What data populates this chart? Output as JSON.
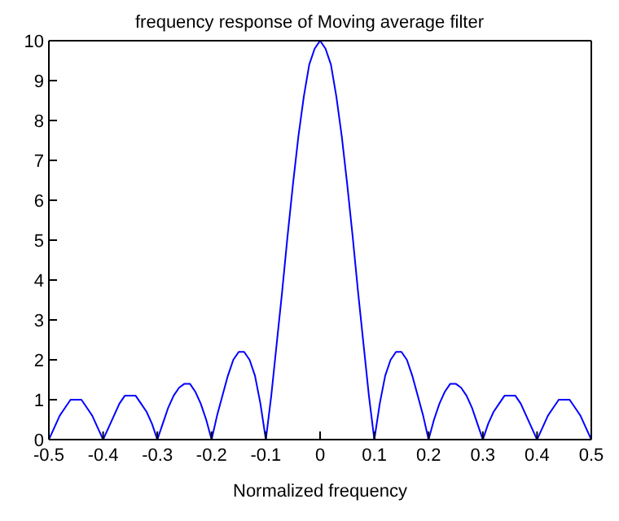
{
  "chart_data": {
    "type": "line",
    "title": "frequency response of Moving average filter",
    "xlabel": "Normalized frequency",
    "x": [
      -0.5,
      -0.49,
      -0.48,
      -0.47,
      -0.46,
      -0.45,
      -0.44,
      -0.43,
      -0.42,
      -0.41,
      -0.4,
      -0.39,
      -0.38,
      -0.37,
      -0.36,
      -0.35,
      -0.34,
      -0.33,
      -0.32,
      -0.31,
      -0.3,
      -0.29,
      -0.28,
      -0.27,
      -0.26,
      -0.25,
      -0.24,
      -0.23,
      -0.22,
      -0.21,
      -0.2,
      -0.19,
      -0.18,
      -0.17,
      -0.16,
      -0.15,
      -0.14,
      -0.13,
      -0.12,
      -0.11,
      -0.1,
      -0.09,
      -0.08,
      -0.07,
      -0.06,
      -0.05,
      -0.04,
      -0.03,
      -0.02,
      -0.01,
      0,
      0.01,
      0.02,
      0.03,
      0.04,
      0.05,
      0.06,
      0.07,
      0.08,
      0.09,
      0.1,
      0.11,
      0.12,
      0.13,
      0.14,
      0.15,
      0.16,
      0.17,
      0.18,
      0.19,
      0.2,
      0.21,
      0.22,
      0.23,
      0.24,
      0.25,
      0.26,
      0.27,
      0.28,
      0.29,
      0.3,
      0.31,
      0.32,
      0.33,
      0.34,
      0.35,
      0.36,
      0.37,
      0.38,
      0.39,
      0.4,
      0.41,
      0.42,
      0.43,
      0.44,
      0.45,
      0.46,
      0.47,
      0.48,
      0.49,
      0.5
    ],
    "series": [
      {
        "color": "#0000ff",
        "values": [
          0,
          0.3,
          0.6,
          0.8,
          1.0,
          1.0,
          1.0,
          0.8,
          0.6,
          0.3,
          0,
          0.3,
          0.6,
          0.9,
          1.1,
          1.1,
          1.1,
          0.9,
          0.7,
          0.4,
          0,
          0.4,
          0.8,
          1.1,
          1.3,
          1.4,
          1.4,
          1.2,
          0.9,
          0.5,
          0,
          0.6,
          1.1,
          1.6,
          2.0,
          2.2,
          2.2,
          2.0,
          1.6,
          0.9,
          0,
          1.1,
          2.4,
          3.7,
          5.1,
          6.4,
          7.6,
          8.6,
          9.4,
          9.8,
          10,
          9.8,
          9.4,
          8.6,
          7.6,
          6.4,
          5.1,
          3.7,
          2.4,
          1.1,
          0,
          0.9,
          1.6,
          2.0,
          2.2,
          2.2,
          2.0,
          1.6,
          1.1,
          0.6,
          0,
          0.5,
          0.9,
          1.2,
          1.4,
          1.4,
          1.3,
          1.1,
          0.8,
          0.4,
          0,
          0.4,
          0.7,
          0.9,
          1.1,
          1.1,
          1.1,
          0.9,
          0.6,
          0.3,
          0,
          0.3,
          0.6,
          0.8,
          1.0,
          1.0,
          1.0,
          0.8,
          0.6,
          0.3,
          0
        ]
      }
    ],
    "xlim": [
      -0.5,
      0.5
    ],
    "xticks": [
      -0.5,
      -0.4,
      -0.3,
      -0.2,
      -0.1,
      0,
      0.1,
      0.2,
      0.3,
      0.4,
      0.5
    ],
    "ylim": [
      0,
      10
    ],
    "yticks": [
      0,
      1,
      2,
      3,
      4,
      5,
      6,
      7,
      8,
      9,
      10
    ],
    "grid": false,
    "legend": false,
    "marker": "none",
    "line_style": "solid"
  }
}
